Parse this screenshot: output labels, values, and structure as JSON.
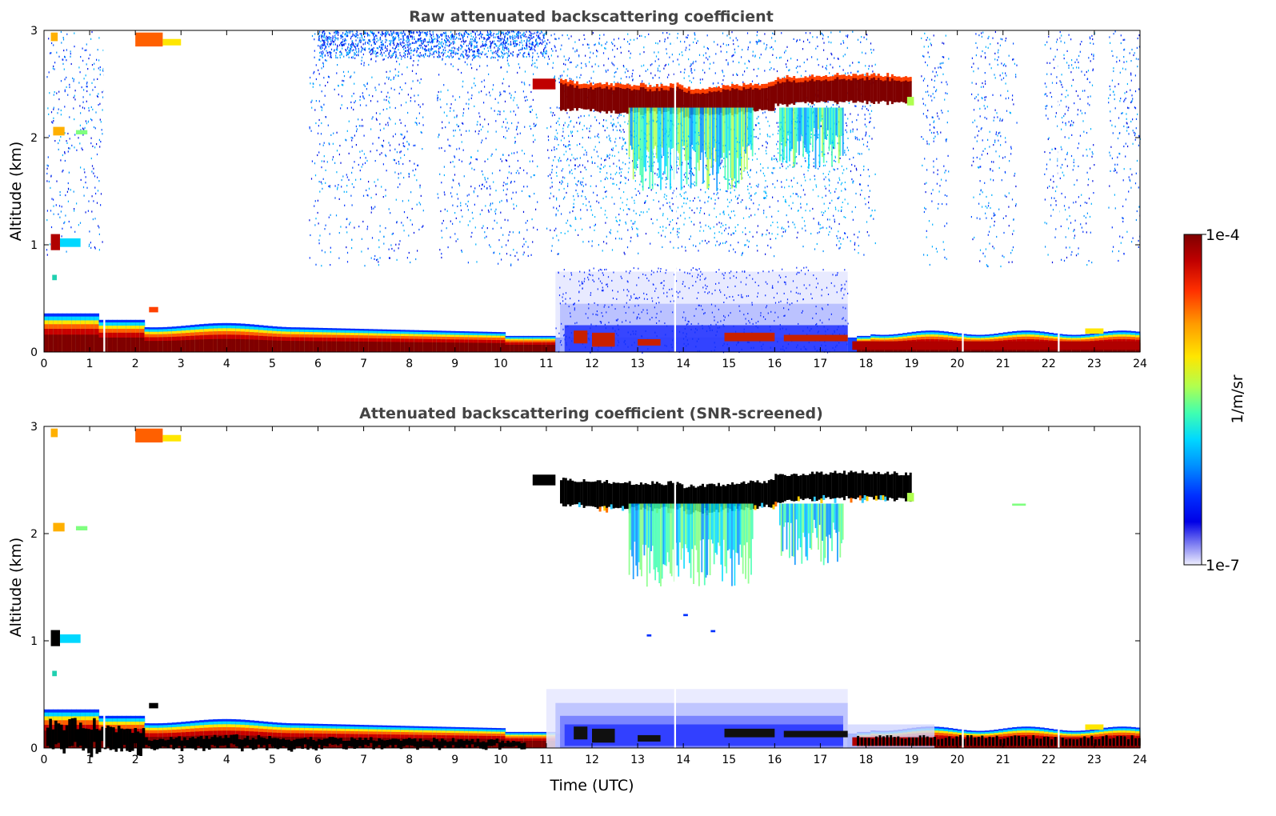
{
  "chart_data": [
    {
      "type": "heatmap",
      "title": "Raw attenuated backscattering coefficient",
      "xlabel": "",
      "ylabel": "Altitude (km)",
      "xlim": [
        0,
        24
      ],
      "ylim": [
        0,
        3
      ],
      "xticks": [
        "0",
        "1",
        "2",
        "3",
        "4",
        "5",
        "6",
        "7",
        "8",
        "9",
        "10",
        "11",
        "12",
        "13",
        "14",
        "15",
        "16",
        "17",
        "18",
        "19",
        "20",
        "21",
        "22",
        "23",
        "24"
      ],
      "yticks": [
        "0",
        "1",
        "2",
        "3"
      ],
      "features": [
        {
          "name": "boundary layer aerosol",
          "t0": 0,
          "t1": 24,
          "z0": 0.0,
          "z1": 0.3,
          "level": "high"
        },
        {
          "name": "elevated cloud layer",
          "t0": 11.3,
          "t1": 19.0,
          "z0": 2.3,
          "z1": 2.55,
          "level": "saturated"
        },
        {
          "name": "precipitation / virga",
          "t0": 12.5,
          "t1": 17.5,
          "z0": 1.5,
          "z1": 2.3,
          "level": "medium"
        },
        {
          "name": "noise columns",
          "t0": 5.8,
          "t1": 24,
          "z0": 0.8,
          "z1": 3.0,
          "level": "low"
        }
      ]
    },
    {
      "type": "heatmap",
      "title": "Attenuated backscattering coefficient (SNR-screened)",
      "xlabel": "Time (UTC)",
      "ylabel": "Altitude (km)",
      "xlim": [
        0,
        24
      ],
      "ylim": [
        0,
        3
      ],
      "xticks": [
        "0",
        "1",
        "2",
        "3",
        "4",
        "5",
        "6",
        "7",
        "8",
        "9",
        "10",
        "11",
        "12",
        "13",
        "14",
        "15",
        "16",
        "17",
        "18",
        "19",
        "20",
        "21",
        "22",
        "23",
        "24"
      ],
      "yticks": [
        "0",
        "1",
        "2",
        "3"
      ],
      "features": [
        {
          "name": "boundary layer aerosol",
          "t0": 0,
          "t1": 24,
          "z0": 0.0,
          "z1": 0.3,
          "level": "high"
        },
        {
          "name": "elevated cloud layer",
          "t0": 11.3,
          "t1": 19.0,
          "z0": 2.3,
          "z1": 2.55,
          "level": "saturated"
        },
        {
          "name": "precipitation / virga",
          "t0": 12.8,
          "t1": 17.5,
          "z0": 1.5,
          "z1": 2.3,
          "level": "medium"
        }
      ]
    }
  ],
  "colorbar": {
    "max_label": "1e-4",
    "min_label": "1e-7",
    "label": "1/m/sr",
    "colormap": [
      "#7f0000",
      "#d40000",
      "#ff4000",
      "#ff9a00",
      "#ffe000",
      "#b4ff50",
      "#5affa0",
      "#00dcff",
      "#0090ff",
      "#0030ff",
      "#0000e0",
      "#6f6ff0",
      "#c8c8f8",
      "#eeeefe"
    ]
  }
}
